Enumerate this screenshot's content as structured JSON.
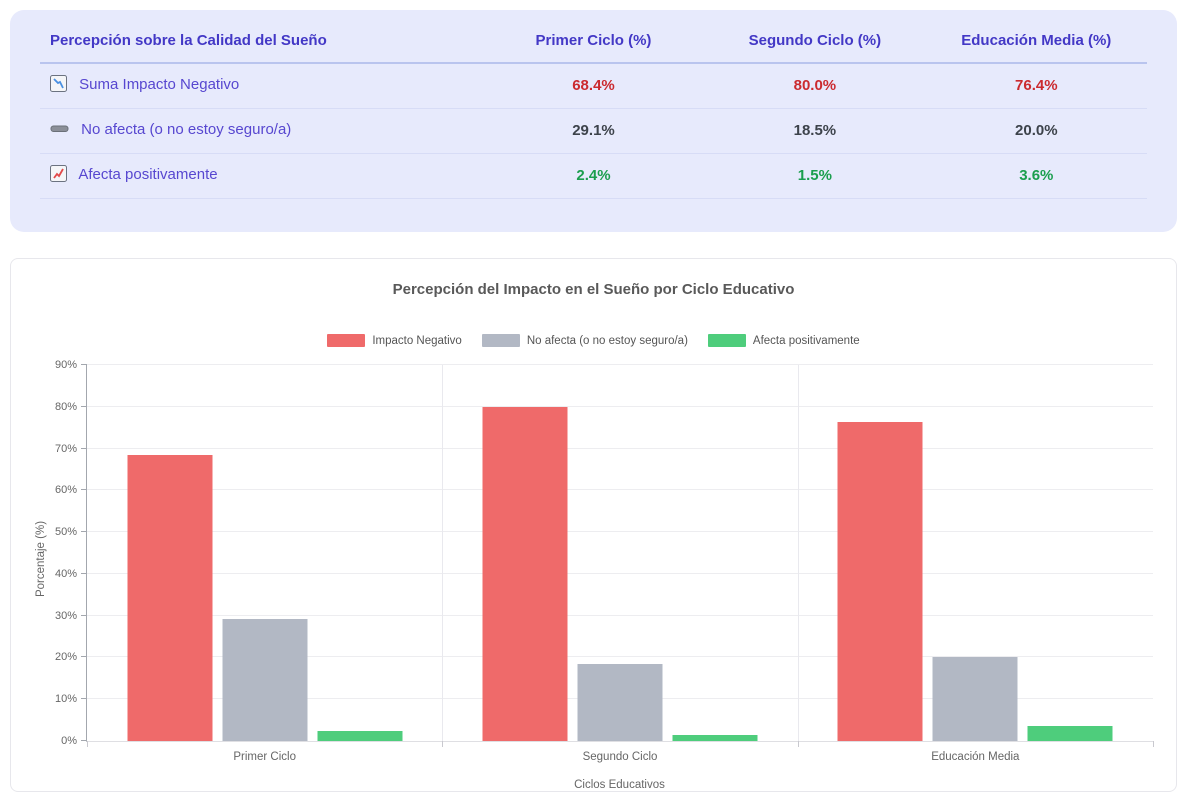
{
  "table": {
    "title_column": "Percepción sobre la Calidad del Sueño",
    "columns": [
      "Primer Ciclo (%)",
      "Segundo Ciclo (%)",
      "Educación Media (%)"
    ],
    "rows": [
      {
        "icon": "declining-chart-icon",
        "label": "Suma Impacto Negativo",
        "values": [
          "68.4%",
          "80.0%",
          "76.4%"
        ],
        "value_color": "#cb2a2f"
      },
      {
        "icon": "minus-icon",
        "label": "No afecta (o no estoy seguro/a)",
        "values": [
          "29.1%",
          "18.5%",
          "20.0%"
        ],
        "value_color": "#3d434b"
      },
      {
        "icon": "rising-chart-icon",
        "label": "Afecta positivamente",
        "values": [
          "2.4%",
          "1.5%",
          "3.6%"
        ],
        "value_color": "#1b9e4e"
      }
    ],
    "header_color": "#4338c6",
    "row_label_color": "#5747d0",
    "card_background": "#e7eafc"
  },
  "chart_data": {
    "type": "bar",
    "title": "Percepción del Impacto en el Sueño por Ciclo Educativo",
    "categories": [
      "Primer Ciclo",
      "Segundo Ciclo",
      "Educación Media"
    ],
    "series": [
      {
        "name": "Impacto Negativo",
        "color": "#ef6a6a",
        "values": [
          68.4,
          80.0,
          76.4
        ]
      },
      {
        "name": "No afecta (o no estoy seguro/a)",
        "color": "#b2b8c4",
        "values": [
          29.1,
          18.5,
          20.0
        ]
      },
      {
        "name": "Afecta positivamente",
        "color": "#4ecd7c",
        "values": [
          2.4,
          1.5,
          3.6
        ]
      }
    ],
    "xlabel": "Ciclos Educativos",
    "ylabel": "Porcentaje (%)",
    "ylim": [
      0,
      90
    ],
    "ytick_step": 10,
    "ytick_suffix": "%",
    "legend_position": "top",
    "grid": true
  }
}
